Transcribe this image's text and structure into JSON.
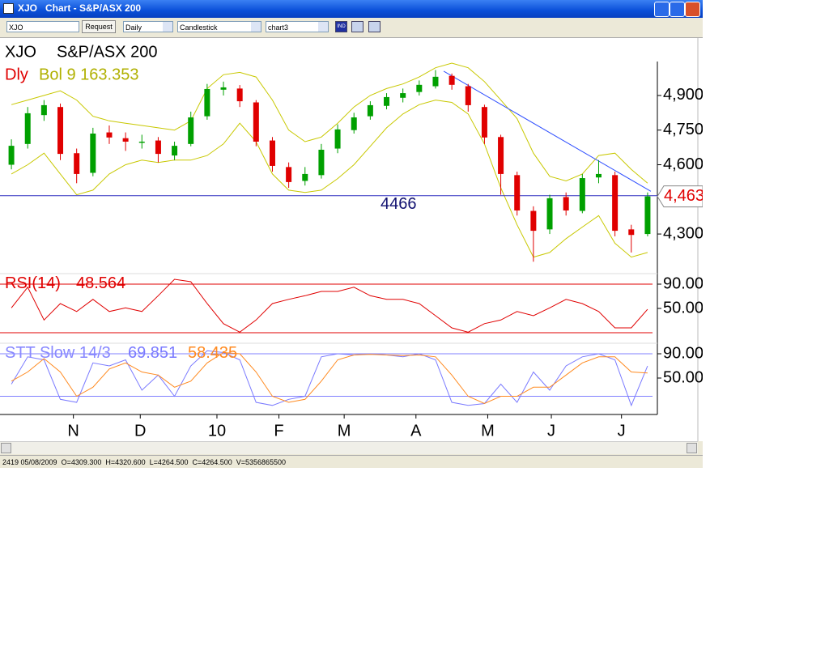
{
  "window": {
    "title": "XJO   Chart - S&P/ASX 200"
  },
  "toolbar": {
    "symbol": "XJO",
    "request": "Request",
    "period": "Daily",
    "style": "Candlestick",
    "layout": "chart3",
    "indicator": "IND"
  },
  "status": "2419 05/08/2009  O=4309.300  H=4320.600  L=4264.500  C=4264.500  V=5356865500",
  "chart_data": [
    {
      "type": "candlestick",
      "title": "XJO",
      "subtitle": "S&P/ASX 200",
      "legend": [
        {
          "text": "Dly",
          "color": "#e00000"
        },
        {
          "text": "Bol 9 163.353",
          "color": "#b0b000"
        }
      ],
      "up_color": "#00a000",
      "down_color": "#e00000",
      "candles": [
        [
          4600,
          4710,
          4580,
          4682
        ],
        [
          4690,
          4850,
          4670,
          4823
        ],
        [
          4815,
          4880,
          4790,
          4858
        ],
        [
          4850,
          4865,
          4620,
          4647
        ],
        [
          4650,
          4670,
          4520,
          4560
        ],
        [
          4565,
          4760,
          4550,
          4735
        ],
        [
          4740,
          4770,
          4690,
          4718
        ],
        [
          4715,
          4740,
          4660,
          4700
        ],
        [
          4695,
          4730,
          4670,
          4700
        ],
        [
          4705,
          4720,
          4610,
          4647
        ],
        [
          4640,
          4700,
          4620,
          4682
        ],
        [
          4690,
          4830,
          4680,
          4805
        ],
        [
          4810,
          4950,
          4795,
          4928
        ],
        [
          4925,
          4960,
          4900,
          4935
        ],
        [
          4930,
          4945,
          4850,
          4875
        ],
        [
          4870,
          4880,
          4680,
          4700
        ],
        [
          4705,
          4720,
          4570,
          4595
        ],
        [
          4590,
          4610,
          4500,
          4525
        ],
        [
          4530,
          4590,
          4510,
          4560
        ],
        [
          4555,
          4690,
          4540,
          4665
        ],
        [
          4670,
          4775,
          4650,
          4753
        ],
        [
          4750,
          4825,
          4735,
          4805
        ],
        [
          4810,
          4875,
          4795,
          4858
        ],
        [
          4855,
          4910,
          4840,
          4893
        ],
        [
          4890,
          4930,
          4870,
          4910
        ],
        [
          4915,
          4965,
          4900,
          4946
        ],
        [
          4940,
          5010,
          4930,
          4981
        ],
        [
          4985,
          4995,
          4925,
          4946
        ],
        [
          4940,
          4950,
          4830,
          4858
        ],
        [
          4850,
          4860,
          4690,
          4718
        ],
        [
          4720,
          4730,
          4470,
          4560
        ],
        [
          4555,
          4570,
          4380,
          4402
        ],
        [
          4400,
          4420,
          4180,
          4314
        ],
        [
          4320,
          4470,
          4300,
          4455
        ],
        [
          4460,
          4480,
          4380,
          4402
        ],
        [
          4400,
          4560,
          4390,
          4542
        ],
        [
          4545,
          4620,
          4520,
          4560
        ],
        [
          4555,
          4570,
          4290,
          4314
        ],
        [
          4320,
          4340,
          4220,
          4296
        ],
        [
          4300,
          4480,
          4290,
          4463
        ]
      ],
      "bands": [
        {
          "color": "#c8c800",
          "values": [
            4860,
            4880,
            4900,
            4920,
            4880,
            4810,
            4790,
            4780,
            4770,
            4760,
            4750,
            4790,
            4930,
            4990,
            5000,
            4980,
            4880,
            4750,
            4700,
            4720,
            4780,
            4850,
            4900,
            4930,
            4950,
            4980,
            5020,
            5040,
            5020,
            4960,
            4880,
            4800,
            4650,
            4550,
            4530,
            4560,
            4640,
            4650,
            4580,
            4520
          ]
        },
        {
          "color": "#c8c800",
          "values": [
            4560,
            4600,
            4650,
            4560,
            4470,
            4490,
            4560,
            4600,
            4620,
            4610,
            4620,
            4620,
            4640,
            4690,
            4780,
            4700,
            4560,
            4490,
            4480,
            4490,
            4540,
            4600,
            4680,
            4760,
            4820,
            4860,
            4880,
            4870,
            4820,
            4690,
            4500,
            4340,
            4200,
            4220,
            4280,
            4330,
            4380,
            4260,
            4200,
            4220
          ]
        }
      ],
      "hline": {
        "value": 4466,
        "color": "#3030c0"
      },
      "trendline": {
        "x": [
          26.5,
          39.2
        ],
        "y": [
          5005,
          4485
        ],
        "color": "#3050ff"
      },
      "last_value_label": "4,463",
      "xlim": [
        -0.5,
        39.5
      ],
      "ylim": [
        4139,
        5033
      ],
      "yticks": [
        {
          "value": 4300,
          "label": "4,300"
        },
        {
          "value": 4600,
          "label": "4,600"
        },
        {
          "value": 4750,
          "label": "4,750"
        },
        {
          "value": 4900,
          "label": "4,900"
        }
      ]
    },
    {
      "type": "line",
      "title": "RSI(14)",
      "title_color": "#e00000",
      "series": [
        {
          "color": "#e00000",
          "values": [
            51,
            85,
            31,
            58,
            45,
            65,
            45,
            51,
            45,
            71,
            98,
            94,
            58,
            25,
            11,
            31,
            58,
            65,
            71,
            78,
            78,
            85,
            71,
            65,
            65,
            58,
            38,
            18,
            11,
            25,
            31,
            45,
            38,
            51,
            65,
            58,
            45,
            18,
            18,
            48.564
          ]
        }
      ],
      "levels": [
        90,
        10
      ],
      "level_color": "#e00000",
      "xlim": [
        -0.5,
        39.5
      ],
      "ylim": [
        0,
        100
      ],
      "yticks": [
        {
          "value": 50,
          "label": "50.00"
        },
        {
          "value": 90,
          "label": "90.00"
        }
      ]
    },
    {
      "type": "line",
      "title": "STT Slow 14/3",
      "title_color": "#8888ff",
      "series": [
        {
          "color": "#7a7aff",
          "values": [
            40,
            85,
            80,
            15,
            10,
            75,
            70,
            80,
            30,
            55,
            20,
            70,
            95,
            92,
            80,
            10,
            5,
            15,
            20,
            85,
            90,
            88,
            90,
            88,
            85,
            90,
            80,
            10,
            5,
            8,
            40,
            10,
            60,
            30,
            70,
            85,
            90,
            80,
            5,
            69.851
          ]
        },
        {
          "color": "#ff8a20",
          "values": [
            45,
            60,
            82,
            60,
            20,
            35,
            65,
            75,
            60,
            55,
            35,
            45,
            75,
            92,
            90,
            60,
            20,
            10,
            15,
            45,
            80,
            88,
            89,
            88,
            87,
            88,
            85,
            55,
            20,
            8,
            20,
            20,
            35,
            35,
            55,
            75,
            85,
            85,
            60,
            58.435
          ]
        }
      ],
      "levels": [
        90,
        20
      ],
      "level_color": "#8080ff",
      "xlim": [
        -0.5,
        39.5
      ],
      "ylim": [
        0,
        100
      ],
      "yticks": [
        {
          "value": 50,
          "label": "50.00"
        },
        {
          "value": 90,
          "label": "90.00"
        }
      ],
      "xticks": [
        {
          "value": 3.8,
          "label": "N"
        },
        {
          "value": 7.9,
          "label": "D"
        },
        {
          "value": 12.6,
          "label": "10"
        },
        {
          "value": 16.4,
          "label": "F"
        },
        {
          "value": 20.4,
          "label": "M"
        },
        {
          "value": 24.8,
          "label": "A"
        },
        {
          "value": 29.2,
          "label": "M"
        },
        {
          "value": 33.1,
          "label": "J"
        },
        {
          "value": 37.4,
          "label": "J"
        }
      ]
    }
  ]
}
